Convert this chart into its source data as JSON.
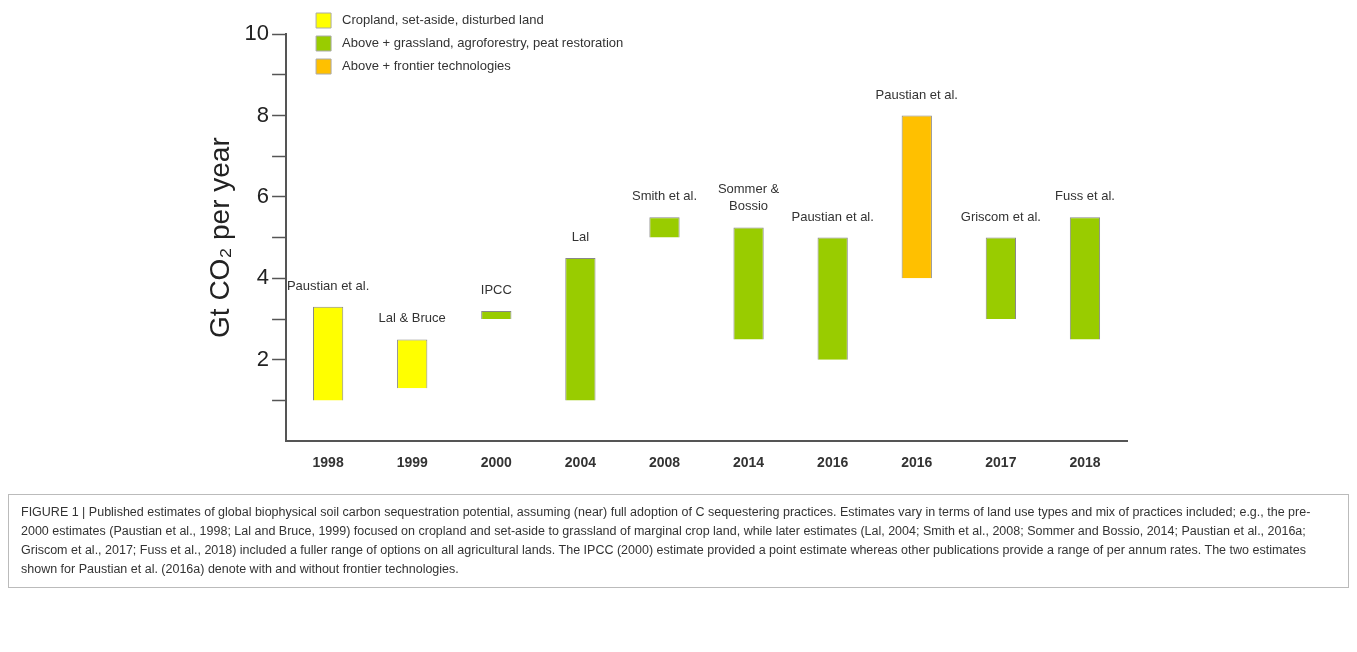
{
  "chart_data": {
    "type": "bar",
    "categories": [
      "1998",
      "1999",
      "2000",
      "2004",
      "2008",
      "2014",
      "2016",
      "2016",
      "2017",
      "2018"
    ],
    "series": [
      {
        "name": "Cropland, set-aside, disturbed land",
        "color": "#ffff00",
        "values": [
          2.3,
          1.2,
          null,
          null,
          null,
          null,
          null,
          null,
          null,
          null
        ],
        "base": [
          1,
          1.3,
          null,
          null,
          null,
          null,
          null,
          null,
          null,
          null
        ]
      },
      {
        "name": "Above + grassland, agroforestry, peat restoration",
        "color": "#99cc00",
        "values": [
          null,
          null,
          0.2,
          3.5,
          0.5,
          2.75,
          3,
          null,
          2,
          3
        ],
        "base": [
          null,
          null,
          3,
          1,
          5,
          2.5,
          2,
          null,
          3,
          2.5
        ]
      },
      {
        "name": "Above + frontier technologies",
        "color": "#ffc000",
        "values": [
          null,
          null,
          null,
          null,
          null,
          null,
          null,
          4,
          null,
          null
        ],
        "base": [
          null,
          null,
          null,
          null,
          null,
          null,
          null,
          4,
          null,
          null
        ]
      }
    ],
    "ylabel": "Gt CO₂ per year",
    "ylim": [
      0,
      10
    ],
    "yticks": [
      {
        "value": 1,
        "label": null
      },
      2,
      {
        "value": 3,
        "label": null
      },
      4,
      {
        "value": 5,
        "label": null
      },
      6,
      {
        "value": 7,
        "label": null
      },
      8,
      {
        "value": 9,
        "label": null
      },
      10
    ],
    "grid": false,
    "legend": "top left",
    "annotations": [
      {
        "text": "Paustian et al.",
        "x": "1998",
        "y": 3.3
      },
      {
        "text": "Lal & Bruce",
        "x": "1999",
        "y": 2.5
      },
      {
        "text": "IPCC",
        "x": "2000",
        "y": 3.2
      },
      {
        "text": "Lal",
        "x": "2004",
        "y": 4.5
      },
      {
        "text": "Smith et al.",
        "x": "2008",
        "y": 5.5
      },
      {
        "text": "Sommer &\nBossio",
        "x": "2014",
        "y": 5.25
      },
      {
        "text": "Paustian et al.",
        "x": "2016",
        "y": 5
      },
      {
        "text": "Paustian et al.",
        "y": 8
      },
      {
        "text": "Griscom et al.",
        "x": "2017",
        "y": 5
      },
      {
        "text": "Fuss et al.",
        "x": "2018",
        "y": 5.5
      },
      "FIGURE 1 | Published estimates of global biophysical soil carbon sequestration potential, assuming (near) full adoption of C sequestering practices. Estimates vary in terms of land use types and mix of practices included; e.g., the pre-2000 estimates (Paustian et al., 1998; Lal and Bruce, 1999) focused on cropland and set-aside to grassland of marginal crop land, while later estimates (Lal, 2004; Smith et al., 2008; Sommer and Bossio, 2014; Paustian et al., 2016a; Griscom et al., 2017; Fuss et al., 2018) included a fuller range of options on all agricultural lands. The IPCC (2000) estimate provided a point estimate whereas other publications provide a range of per annum rates. The two estimates shown for Paustian et al. (2016a) denote with and without frontier technologies."
    ]
  }
}
